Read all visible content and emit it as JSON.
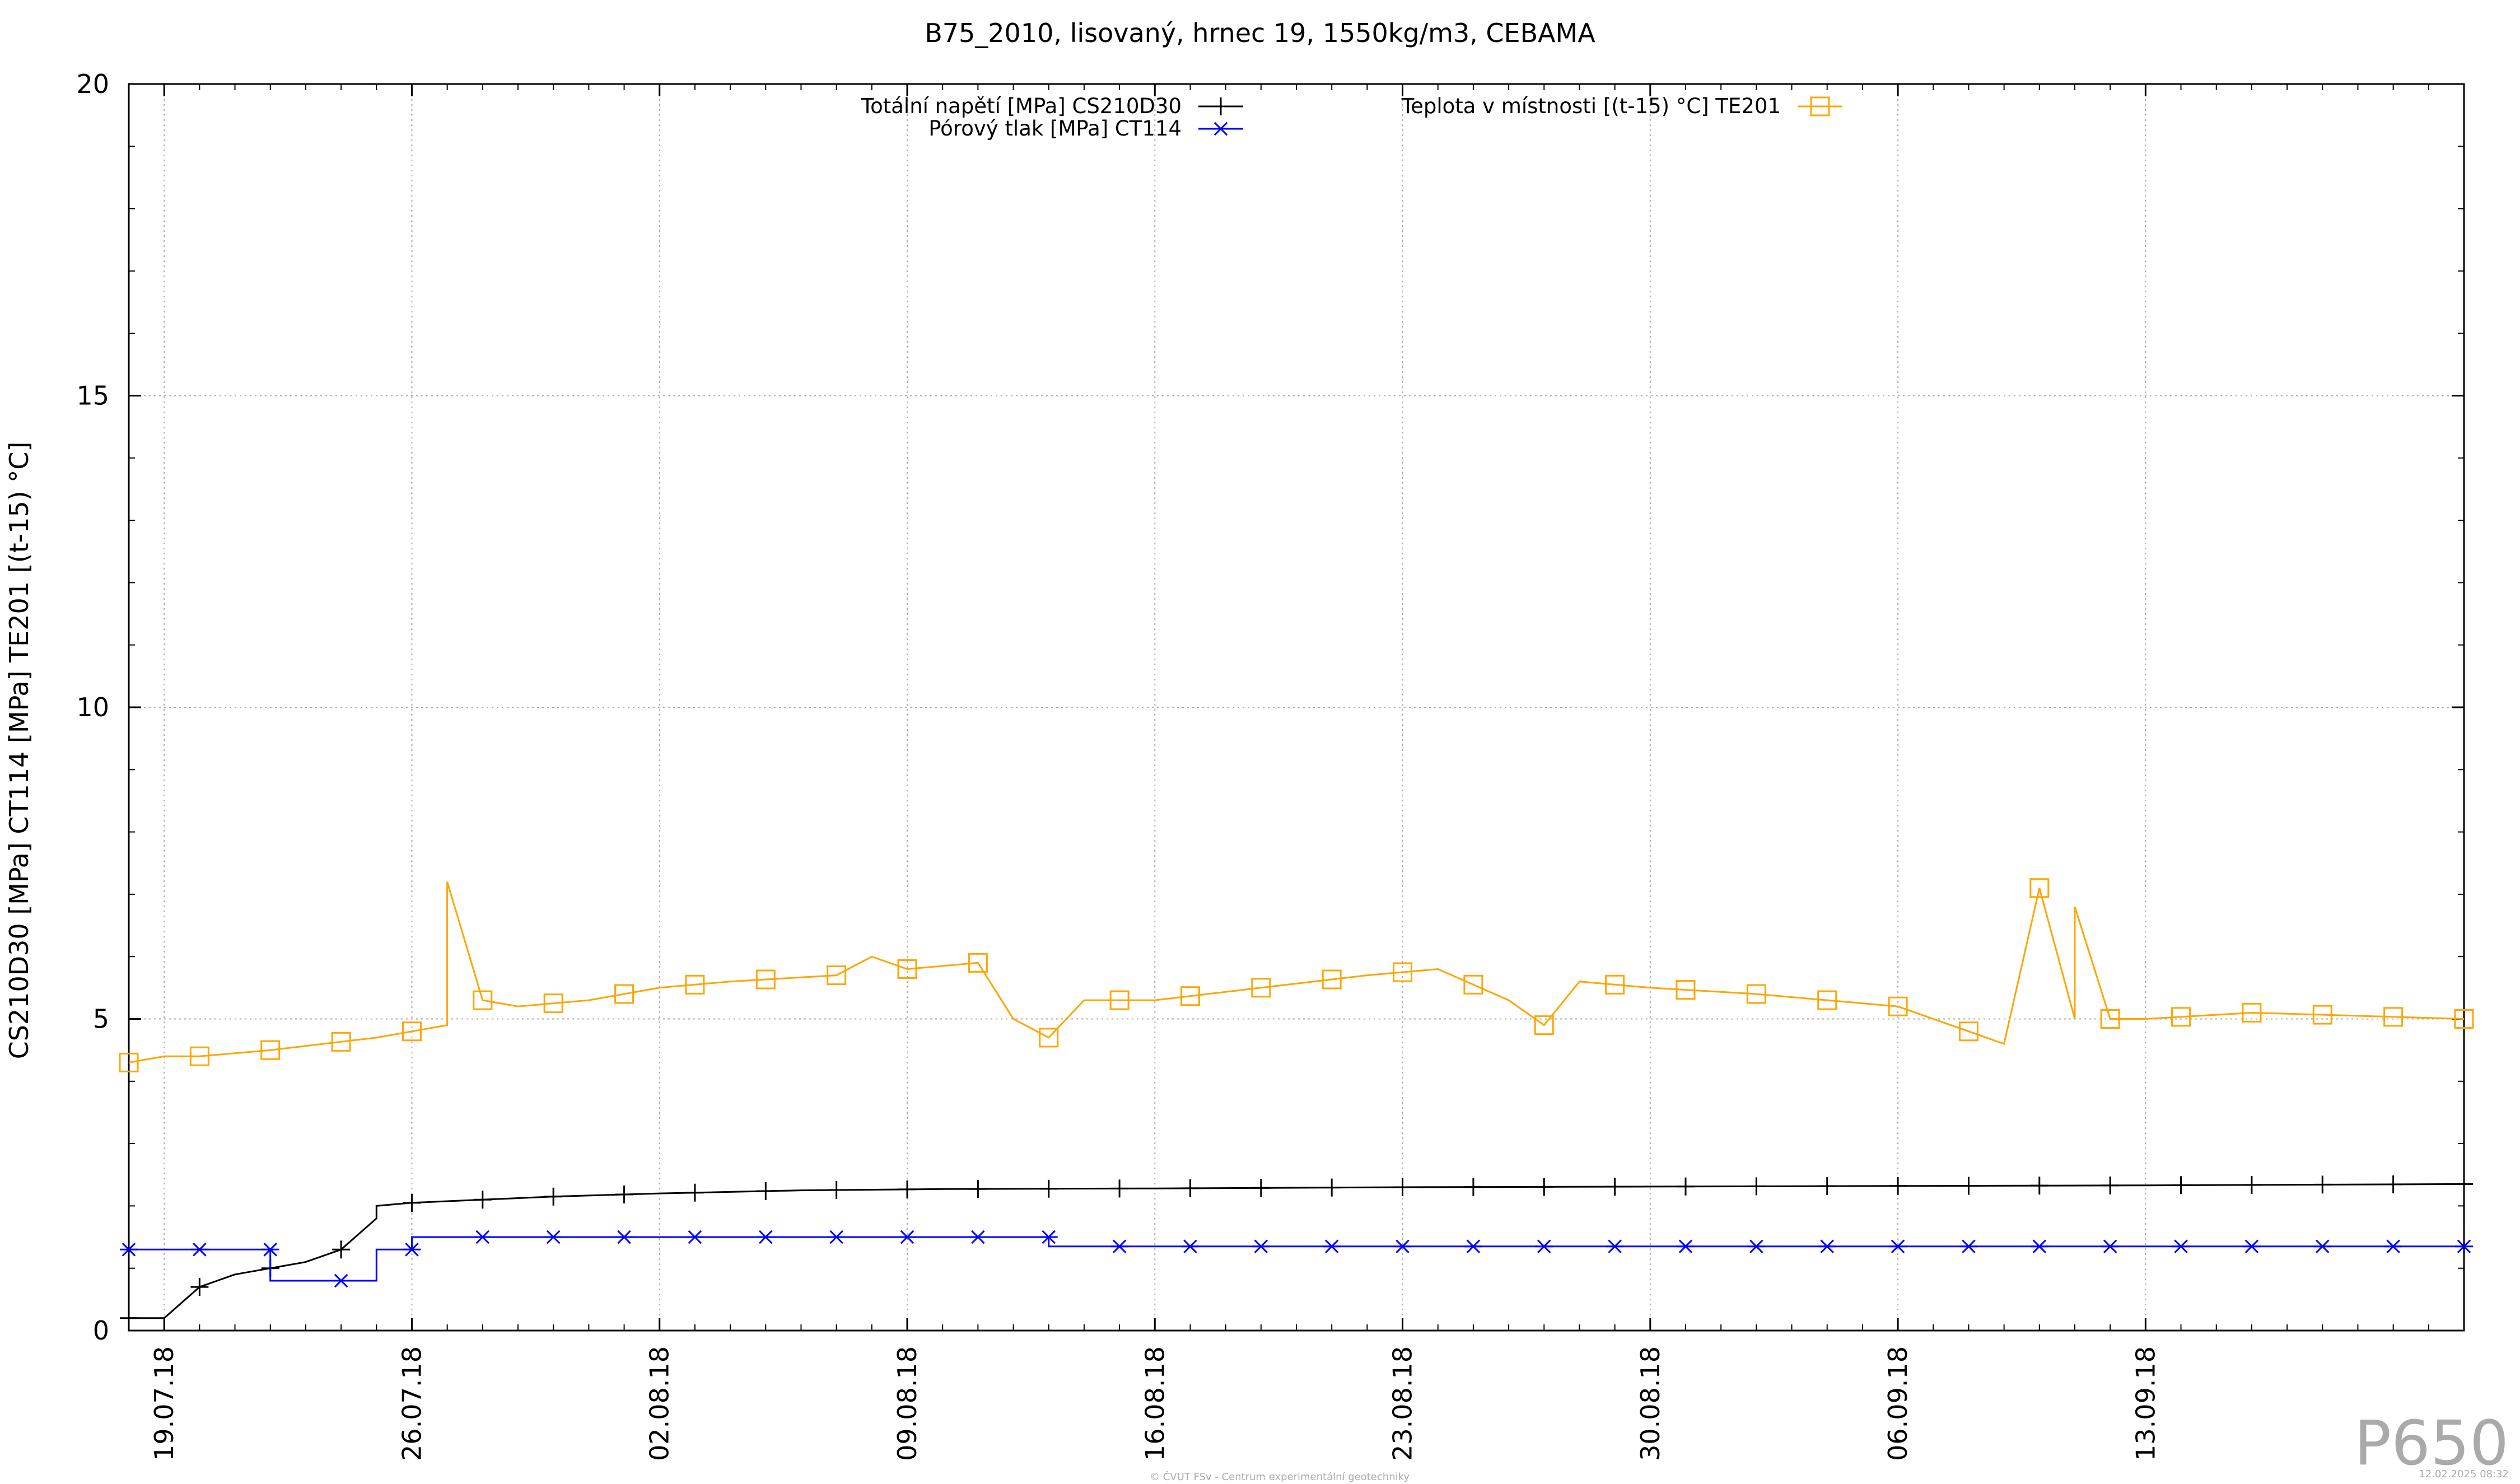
{
  "chart_data": {
    "type": "line",
    "title": "B75_2010, lisovaný, hrnec 19, 1550kg/m3, CEBAMA",
    "xlabel": "",
    "ylabel": "CS210D30 [MPa] CT114 [MPa] TE201 [(t-15) °C]",
    "ylim": [
      0,
      20
    ],
    "yticks": [
      "0",
      "5",
      "10",
      "15",
      "20"
    ],
    "x_axis_type": "date",
    "xlim": [
      "2018-07-18",
      "2018-09-22"
    ],
    "xticks": [
      "19.07.18",
      "26.07.18",
      "02.08.18",
      "09.08.18",
      "16.08.18",
      "23.08.18",
      "30.08.18",
      "06.09.18",
      "13.09.18"
    ],
    "grid": true,
    "legend_position": "top",
    "series": [
      {
        "name": "Totální napětí [MPa] CS210D30",
        "color": "#000000",
        "marker": "plus",
        "x": [
          "2018-07-18",
          "2018-07-19",
          "2018-07-19",
          "2018-07-20",
          "2018-07-21",
          "2018-07-22",
          "2018-07-23",
          "2018-07-24",
          "2018-07-25",
          "2018-07-25",
          "2018-07-26",
          "2018-07-28",
          "2018-07-30",
          "2018-08-02",
          "2018-08-06",
          "2018-08-10",
          "2018-08-16",
          "2018-08-23",
          "2018-08-30",
          "2018-09-06",
          "2018-09-13",
          "2018-09-22"
        ],
        "y": [
          0.2,
          0.2,
          0.2,
          0.7,
          0.9,
          1.0,
          1.1,
          1.3,
          1.8,
          2.0,
          2.05,
          2.1,
          2.15,
          2.2,
          2.25,
          2.27,
          2.28,
          2.3,
          2.31,
          2.32,
          2.33,
          2.35
        ]
      },
      {
        "name": "Pórový tlak [MPa] CT114",
        "color": "#0000ff",
        "marker": "asterisk",
        "x": [
          "2018-07-18",
          "2018-07-22",
          "2018-07-22",
          "2018-07-25",
          "2018-07-25",
          "2018-07-26",
          "2018-07-26",
          "2018-08-13",
          "2018-08-13",
          "2018-09-22"
        ],
        "y": [
          1.3,
          1.3,
          0.8,
          0.8,
          1.3,
          1.3,
          1.5,
          1.5,
          1.35,
          1.35
        ]
      },
      {
        "name": "Teplota v místnosti [(t-15) °C] TE201",
        "color": "#ffa500",
        "marker": "square",
        "x": [
          "2018-07-18",
          "2018-07-19",
          "2018-07-20",
          "2018-07-22",
          "2018-07-25",
          "2018-07-27",
          "2018-07-27",
          "2018-07-28",
          "2018-07-29",
          "2018-07-31",
          "2018-08-02",
          "2018-08-04",
          "2018-08-07",
          "2018-08-08",
          "2018-08-09",
          "2018-08-11",
          "2018-08-12",
          "2018-08-13",
          "2018-08-14",
          "2018-08-16",
          "2018-08-19",
          "2018-08-22",
          "2018-08-24",
          "2018-08-26",
          "2018-08-27",
          "2018-08-28",
          "2018-08-30",
          "2018-09-02",
          "2018-09-04",
          "2018-09-06",
          "2018-09-09",
          "2018-09-10",
          "2018-09-11",
          "2018-09-11",
          "2018-09-12",
          "2018-09-13",
          "2018-09-16",
          "2018-09-22"
        ],
        "y": [
          4.3,
          4.4,
          4.4,
          4.5,
          4.7,
          4.9,
          7.2,
          5.3,
          5.2,
          5.3,
          5.5,
          5.6,
          5.7,
          6.0,
          5.8,
          5.9,
          5.0,
          4.7,
          5.3,
          5.3,
          5.5,
          5.7,
          5.8,
          5.3,
          4.9,
          5.6,
          5.5,
          5.4,
          5.3,
          5.2,
          4.6,
          7.1,
          5.0,
          6.8,
          5.0,
          5.0,
          5.1,
          5.0
        ]
      }
    ]
  },
  "watermark": "P650",
  "footer_left": "© ČVUT FSv - Centrum experimentální geotechniky",
  "footer_right": "12.02.2025 08:32"
}
